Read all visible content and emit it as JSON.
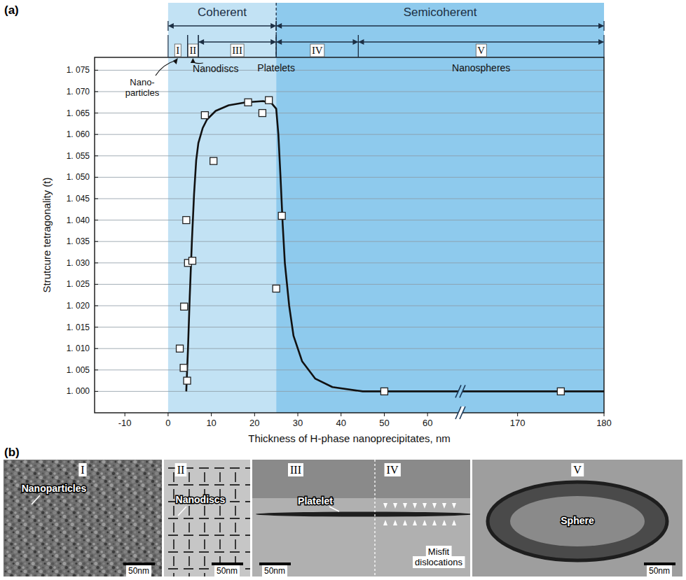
{
  "chart_data": {
    "type": "scatter",
    "panel_label": "(a)",
    "x_label": "Thickness of H-phase nanoprecipitates,  nm",
    "y_label": "Strutcure tetragonality (t)",
    "xlim": [
      -17,
      180
    ],
    "x_break": [
      65,
      165
    ],
    "xticks": [
      -10,
      0,
      10,
      20,
      30,
      40,
      50,
      60,
      170,
      180
    ],
    "ylim": [
      0.995,
      1.078
    ],
    "yticks": [
      {
        "value": 1.0,
        "label": "1. 000"
      },
      {
        "value": 1.005,
        "label": "1. 005"
      },
      {
        "value": 1.01,
        "label": "1. 010"
      },
      {
        "value": 1.015,
        "label": "1. 015"
      },
      {
        "value": 1.02,
        "label": "1. 020"
      },
      {
        "value": 1.025,
        "label": "1. 025"
      },
      {
        "value": 1.03,
        "label": "1. 030"
      },
      {
        "value": 1.035,
        "label": "1. 035"
      },
      {
        "value": 1.04,
        "label": "1. 040"
      },
      {
        "value": 1.045,
        "label": "1. 045"
      },
      {
        "value": 1.05,
        "label": "1. 050"
      },
      {
        "value": 1.055,
        "label": "1. 055"
      },
      {
        "value": 1.06,
        "label": "1. 060"
      },
      {
        "value": 1.065,
        "label": "1. 065"
      },
      {
        "value": 1.07,
        "label": "1. 070"
      },
      {
        "value": 1.075,
        "label": "1. 075"
      }
    ],
    "grid": true,
    "phases": [
      {
        "label": "Coherent",
        "range": [
          0,
          25
        ],
        "color": "#c2e2f4"
      },
      {
        "label": "Semicoherent",
        "range": [
          25,
          180
        ],
        "color": "#8ecaed"
      }
    ],
    "regions": [
      {
        "label": "I",
        "range": [
          0,
          4.5
        ]
      },
      {
        "label": "II",
        "range": [
          4.5,
          7
        ]
      },
      {
        "label": "III",
        "range": [
          7,
          25
        ]
      },
      {
        "label": "IV",
        "range": [
          25,
          44
        ]
      },
      {
        "label": "V",
        "range": [
          44,
          180
        ]
      }
    ],
    "annotations": {
      "nanoparticles": [
        "Nano-",
        "particles"
      ],
      "nanodiscs": "Nanodiscs",
      "platelets": "Platelets",
      "nanospheres": "Nanospheres"
    },
    "series": [
      {
        "type": "line",
        "color": "#111111",
        "line_style": "solid",
        "x": [
          4.2,
          4.6,
          5,
          5.5,
          6,
          6.5,
          7,
          8,
          9,
          11,
          14,
          18,
          22,
          24,
          25,
          25.5,
          26,
          26.5,
          27,
          28,
          29,
          31,
          34,
          38,
          45,
          55,
          65,
          165,
          180
        ],
        "values": [
          1.0,
          1.01,
          1.022,
          1.035,
          1.046,
          1.054,
          1.058,
          1.0615,
          1.0635,
          1.0655,
          1.0668,
          1.0675,
          1.0678,
          1.0672,
          1.066,
          1.06,
          1.05,
          1.039,
          1.03,
          1.02,
          1.013,
          1.007,
          1.003,
          1.001,
          1.0,
          1.0,
          1.0,
          1.0,
          1.0
        ]
      },
      {
        "type": "scatter",
        "color": "#ffffff",
        "marker": "square",
        "x": [
          2.7,
          3.6,
          3.7,
          4.4,
          4.2,
          4.6,
          5.6,
          8.5,
          10.5,
          18.5,
          21.8,
          23.3,
          25.0,
          26.3,
          50,
          175
        ],
        "values": [
          1.01,
          1.0055,
          1.0198,
          1.0025,
          1.04,
          1.03,
          1.0305,
          1.0645,
          1.0538,
          1.0675,
          1.065,
          1.068,
          1.024,
          1.041,
          1.0,
          1.0
        ]
      }
    ]
  },
  "micrographs": {
    "panel_label": "(b)",
    "panels": [
      {
        "numerals": [
          "I"
        ],
        "labels": [
          "Nanoparticles"
        ],
        "scale_bar": "50nm"
      },
      {
        "numerals": [
          "II"
        ],
        "labels": [
          "Nanodiscs"
        ],
        "scale_bar": "50nm"
      },
      {
        "numerals": [
          "III",
          "IV"
        ],
        "labels": [
          "Platelet"
        ],
        "note": [
          "Misfit",
          "dislocations"
        ],
        "scale_bar": "50nm"
      },
      {
        "numerals": [
          "V"
        ],
        "labels": [
          "Sphere"
        ],
        "scale_bar": "50nm"
      }
    ]
  }
}
